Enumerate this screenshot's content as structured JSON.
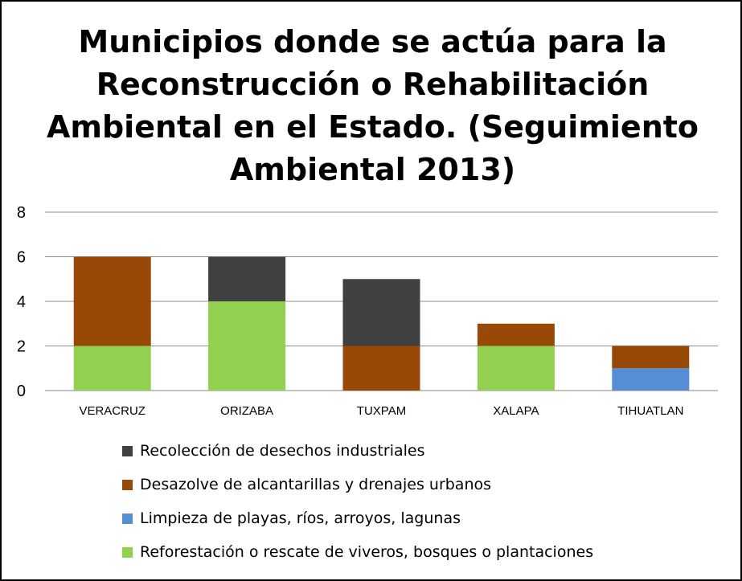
{
  "chart_data": {
    "type": "bar",
    "stacked": true,
    "title_lines": [
      "Municipios donde se actúa para la",
      "Reconstrucción o Rehabilitación",
      "Ambiental en el Estado. (Seguimiento",
      "Ambiental 2013)"
    ],
    "categories": [
      "VERACRUZ",
      "ORIZABA",
      "TUXPAM",
      "XALAPA",
      "TIHUATLAN"
    ],
    "series": [
      {
        "name": "Reforestación o rescate de viveros, bosques o plantaciones",
        "color": "#92d050",
        "values": [
          2,
          4,
          0,
          2,
          0
        ]
      },
      {
        "name": "Limpieza de playas, ríos, arroyos, lagunas",
        "color": "#558ed5",
        "values": [
          0,
          0,
          0,
          0,
          1
        ]
      },
      {
        "name": "Desazolve de alcantarillas y drenajes urbanos",
        "color": "#984807",
        "values": [
          4,
          0,
          2,
          1,
          1
        ]
      },
      {
        "name": "Recolección de desechos industriales",
        "color": "#404040",
        "values": [
          0,
          2,
          3,
          0,
          0
        ]
      }
    ],
    "legend_order": [
      3,
      2,
      1,
      0
    ],
    "ylim": [
      0,
      8
    ],
    "yticks": [
      "0",
      "2",
      "4",
      "6",
      "8"
    ],
    "grid": true,
    "legend_position": "bottom"
  }
}
